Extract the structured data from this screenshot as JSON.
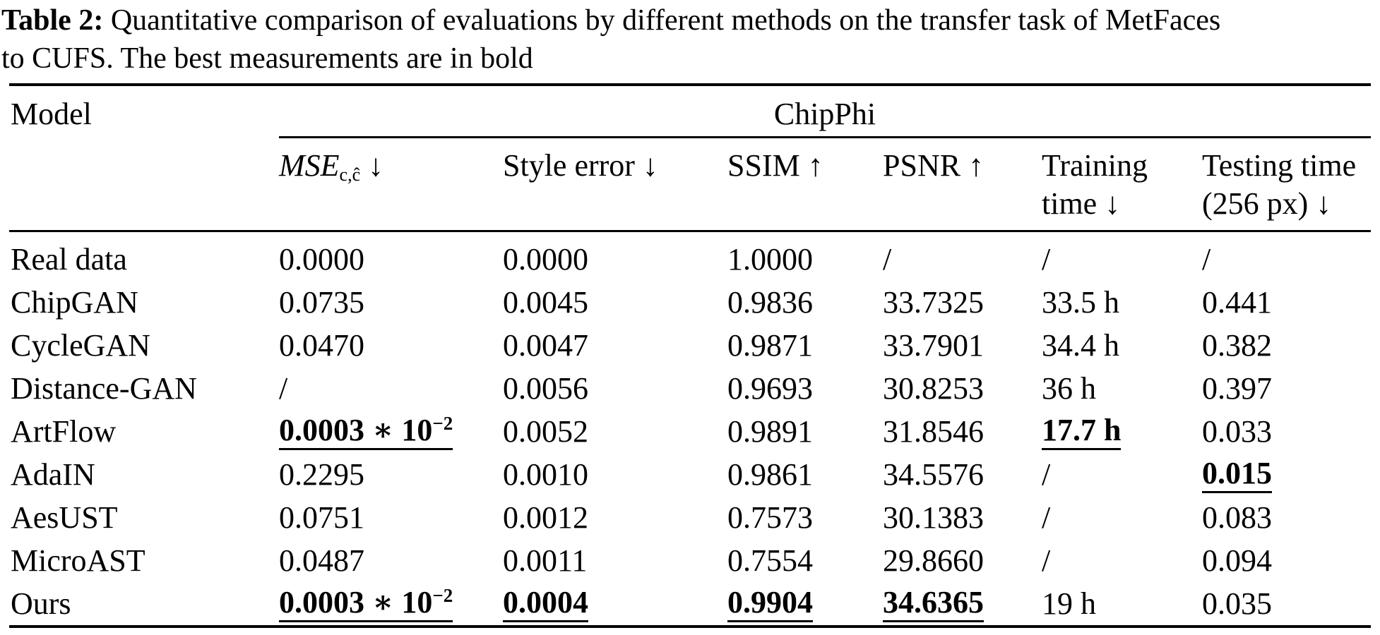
{
  "caption": {
    "label": "Table 2:",
    "line1_rest": "Quantitative comparison of evaluations by different methods on the transfer task of MetFaces",
    "line2": "to CUFS. The best measurements are in bold"
  },
  "table": {
    "model_header": "Model",
    "group_header": "ChipPhi",
    "columns": [
      {
        "name": "mse",
        "base": "MSE",
        "sub": "c,ĉ",
        "arrow": "↓"
      },
      {
        "name": "style-error",
        "line1": "Style error ↓",
        "line2": ""
      },
      {
        "name": "ssim",
        "line1": "SSIM ↑",
        "line2": ""
      },
      {
        "name": "psnr",
        "line1": "PSNR ↑",
        "line2": ""
      },
      {
        "name": "training-time",
        "line1": "Training",
        "line2": "time ↓"
      },
      {
        "name": "testing-time",
        "line1": "Testing time",
        "line2": "(256 px) ↓"
      }
    ],
    "rows": [
      {
        "model": "Real data",
        "cells": [
          {
            "t": "0.0000"
          },
          {
            "t": "0.0000"
          },
          {
            "t": "1.0000"
          },
          {
            "t": "/"
          },
          {
            "t": "/"
          },
          {
            "t": "/"
          }
        ]
      },
      {
        "model": "ChipGAN",
        "cells": [
          {
            "t": "0.0735"
          },
          {
            "t": "0.0045"
          },
          {
            "t": "0.9836"
          },
          {
            "t": "33.7325"
          },
          {
            "t": "33.5 h"
          },
          {
            "t": "0.441"
          }
        ]
      },
      {
        "model": "CycleGAN",
        "cells": [
          {
            "t": "0.0470"
          },
          {
            "t": "0.0047"
          },
          {
            "t": "0.9871"
          },
          {
            "t": "33.7901"
          },
          {
            "t": "34.4 h"
          },
          {
            "t": "0.382"
          }
        ]
      },
      {
        "model": "Distance-GAN",
        "cells": [
          {
            "t": "/"
          },
          {
            "t": "0.0056"
          },
          {
            "t": "0.9693"
          },
          {
            "t": "30.8253"
          },
          {
            "t": "36 h"
          },
          {
            "t": "0.397"
          }
        ]
      },
      {
        "model": "ArtFlow",
        "cells": [
          {
            "t": "0.0003 ∗ 10",
            "sup": "−2",
            "best": true
          },
          {
            "t": "0.0052"
          },
          {
            "t": "0.9891"
          },
          {
            "t": "31.8546"
          },
          {
            "t": "17.7 h",
            "best": true
          },
          {
            "t": "0.033"
          }
        ]
      },
      {
        "model": "AdaIN",
        "cells": [
          {
            "t": "0.2295"
          },
          {
            "t": "0.0010"
          },
          {
            "t": "0.9861"
          },
          {
            "t": "34.5576"
          },
          {
            "t": "/"
          },
          {
            "t": "0.015",
            "best": true
          }
        ]
      },
      {
        "model": "AesUST",
        "cells": [
          {
            "t": "0.0751"
          },
          {
            "t": "0.0012"
          },
          {
            "t": "0.7573"
          },
          {
            "t": "30.1383"
          },
          {
            "t": "/"
          },
          {
            "t": "0.083"
          }
        ]
      },
      {
        "model": "MicroAST",
        "cells": [
          {
            "t": "0.0487"
          },
          {
            "t": "0.0011"
          },
          {
            "t": "0.7554"
          },
          {
            "t": "29.8660"
          },
          {
            "t": "/"
          },
          {
            "t": "0.094"
          }
        ]
      },
      {
        "model": "Ours",
        "cells": [
          {
            "t": "0.0003 ∗ 10",
            "sup": "−2",
            "best": true
          },
          {
            "t": "0.0004",
            "best": true
          },
          {
            "t": "0.9904",
            "best": true
          },
          {
            "t": "34.6365",
            "best": true
          },
          {
            "t": "19 h"
          },
          {
            "t": "0.035"
          }
        ]
      }
    ]
  }
}
